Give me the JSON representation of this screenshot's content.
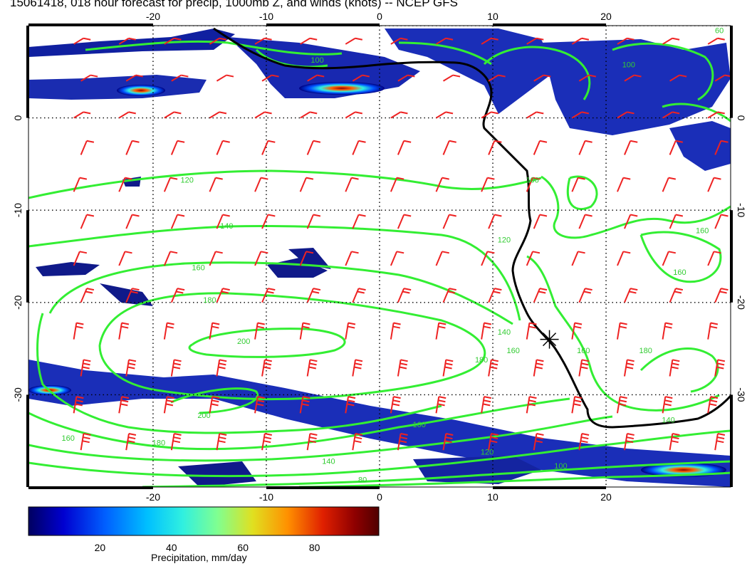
{
  "title": "15061418, 018 hour forecast for precip, 1000mb Z, and winds (knots) -- NCEP GFS",
  "map": {
    "lon_range": [
      -31,
      31
    ],
    "lat_range": [
      -40,
      10
    ],
    "lon_ticks": [
      "-20",
      "-10",
      "0",
      "10",
      "20"
    ],
    "lat_ticks": [
      "0",
      "-10",
      "-20",
      "-30"
    ],
    "lon_tick_values": [
      -20,
      -10,
      0,
      10,
      20
    ],
    "lat_tick_values": [
      0,
      -10,
      -20,
      -30
    ],
    "gridlines": true,
    "contour_color": "#33ee33",
    "coast_color": "#000000",
    "barb_color": "#ee2222",
    "contour_labels": [
      {
        "text": "120",
        "lon": -17,
        "lat": -7
      },
      {
        "text": "140",
        "lon": -13.5,
        "lat": -12
      },
      {
        "text": "160",
        "lon": -16,
        "lat": -16.5
      },
      {
        "text": "180",
        "lon": -15,
        "lat": -20
      },
      {
        "text": "200",
        "lon": -12,
        "lat": -24.5
      },
      {
        "text": "200",
        "lon": -15.5,
        "lat": -32.5
      },
      {
        "text": "180",
        "lon": -19.5,
        "lat": -35.5
      },
      {
        "text": "160",
        "lon": -27.5,
        "lat": -35
      },
      {
        "text": "160",
        "lon": 3.5,
        "lat": -33.5
      },
      {
        "text": "140",
        "lon": -4.5,
        "lat": -37.5
      },
      {
        "text": "120",
        "lon": 9.5,
        "lat": -36.5
      },
      {
        "text": "100",
        "lon": 16,
        "lat": -38
      },
      {
        "text": "80",
        "lon": -1.5,
        "lat": -39.5
      },
      {
        "text": "140",
        "lon": 11,
        "lat": -23.5
      },
      {
        "text": "160",
        "lon": 11.8,
        "lat": -25.5
      },
      {
        "text": "180",
        "lon": 9,
        "lat": -26.5
      },
      {
        "text": "160",
        "lon": 18,
        "lat": -25.5
      },
      {
        "text": "120",
        "lon": 11,
        "lat": -13.5
      },
      {
        "text": "100",
        "lon": 13.5,
        "lat": -7
      },
      {
        "text": "160",
        "lon": 28.5,
        "lat": -12.5
      },
      {
        "text": "160",
        "lon": 26.5,
        "lat": -17
      },
      {
        "text": "180",
        "lon": 23.5,
        "lat": -25.5
      },
      {
        "text": "140",
        "lon": 25.5,
        "lat": -33
      },
      {
        "text": "60",
        "lon": 30,
        "lat": 9.2
      },
      {
        "text": "100",
        "lon": 22,
        "lat": 5.5
      },
      {
        "text": "100",
        "lon": -5.5,
        "lat": 6
      }
    ],
    "station_marker": {
      "lon": 15,
      "lat": -24
    }
  },
  "colorbar": {
    "label": "Precipitation, mm/day",
    "ticks": [
      "20",
      "40",
      "60",
      "80"
    ],
    "tick_values": [
      20,
      40,
      60,
      80
    ],
    "range": [
      0,
      98
    ],
    "colors": [
      "#000060",
      "#0000d0",
      "#0060ff",
      "#00c0ff",
      "#30f0e0",
      "#80ff90",
      "#e0e020",
      "#ff9000",
      "#e02000",
      "#900000",
      "#500000"
    ]
  }
}
